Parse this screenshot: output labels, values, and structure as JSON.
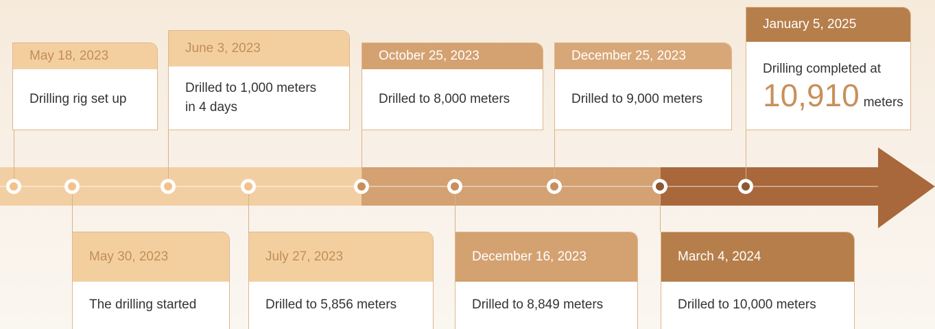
{
  "events": [
    {
      "date": "May 18, 2023",
      "text": [
        "Drilling rig set up"
      ]
    },
    {
      "date": "May 30, 2023",
      "text": [
        "The drilling started"
      ]
    },
    {
      "date": "June 3, 2023",
      "text": [
        "Drilled to 1,000 meters",
        "in 4 days"
      ]
    },
    {
      "date": "July 27, 2023",
      "text": [
        "Drilled to 5,856 meters"
      ]
    },
    {
      "date": "October 25, 2023",
      "text": [
        "Drilled to 8,000 meters"
      ]
    },
    {
      "date": "December 16, 2023",
      "text": [
        "Drilled to 8,849 meters"
      ]
    },
    {
      "date": "December 25, 2023",
      "text": [
        "Drilled to 9,000 meters"
      ]
    },
    {
      "date": "March 4, 2024",
      "text": [
        "Drilled to 10,000 meters"
      ]
    },
    {
      "date": "January 5, 2025",
      "text": [
        "Drilling completed at"
      ],
      "figure": "10,910",
      "unit": "meters"
    }
  ]
}
